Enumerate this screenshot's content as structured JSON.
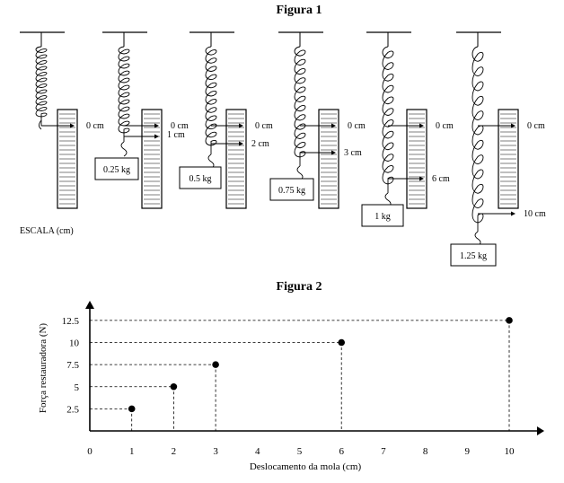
{
  "figure1": {
    "title": "Figura 1",
    "scale_label": "ESCALA (cm)",
    "zero_label": "0 cm",
    "setups": [
      {
        "mass": "",
        "displacement": ""
      },
      {
        "mass": "0.25 kg",
        "displacement": "1 cm"
      },
      {
        "mass": "0.5 kg",
        "displacement": "2 cm"
      },
      {
        "mass": "0.75 kg",
        "displacement": "3 cm"
      },
      {
        "mass": "1 kg",
        "displacement": "6 cm"
      },
      {
        "mass": "1.25 kg",
        "displacement": "10 cm"
      }
    ]
  },
  "figure2": {
    "title": "Figura 2",
    "chart_data": {
      "type": "scatter",
      "xlabel": "Deslocamento da mola (cm)",
      "ylabel": "Força restauradora (N)",
      "x_ticks": [
        "0",
        "1",
        "2",
        "3",
        "4",
        "5",
        "6",
        "7",
        "8",
        "9",
        "10"
      ],
      "y_ticks": [
        "2.5",
        "5",
        "7.5",
        "10",
        "12.5"
      ],
      "xlim": [
        0,
        10
      ],
      "ylim": [
        0,
        12.5
      ],
      "points": [
        {
          "x": 1,
          "y": 2.5
        },
        {
          "x": 2,
          "y": 5
        },
        {
          "x": 3,
          "y": 7.5
        },
        {
          "x": 6,
          "y": 10
        },
        {
          "x": 10,
          "y": 12.5
        }
      ],
      "dashed_guides": true
    }
  }
}
